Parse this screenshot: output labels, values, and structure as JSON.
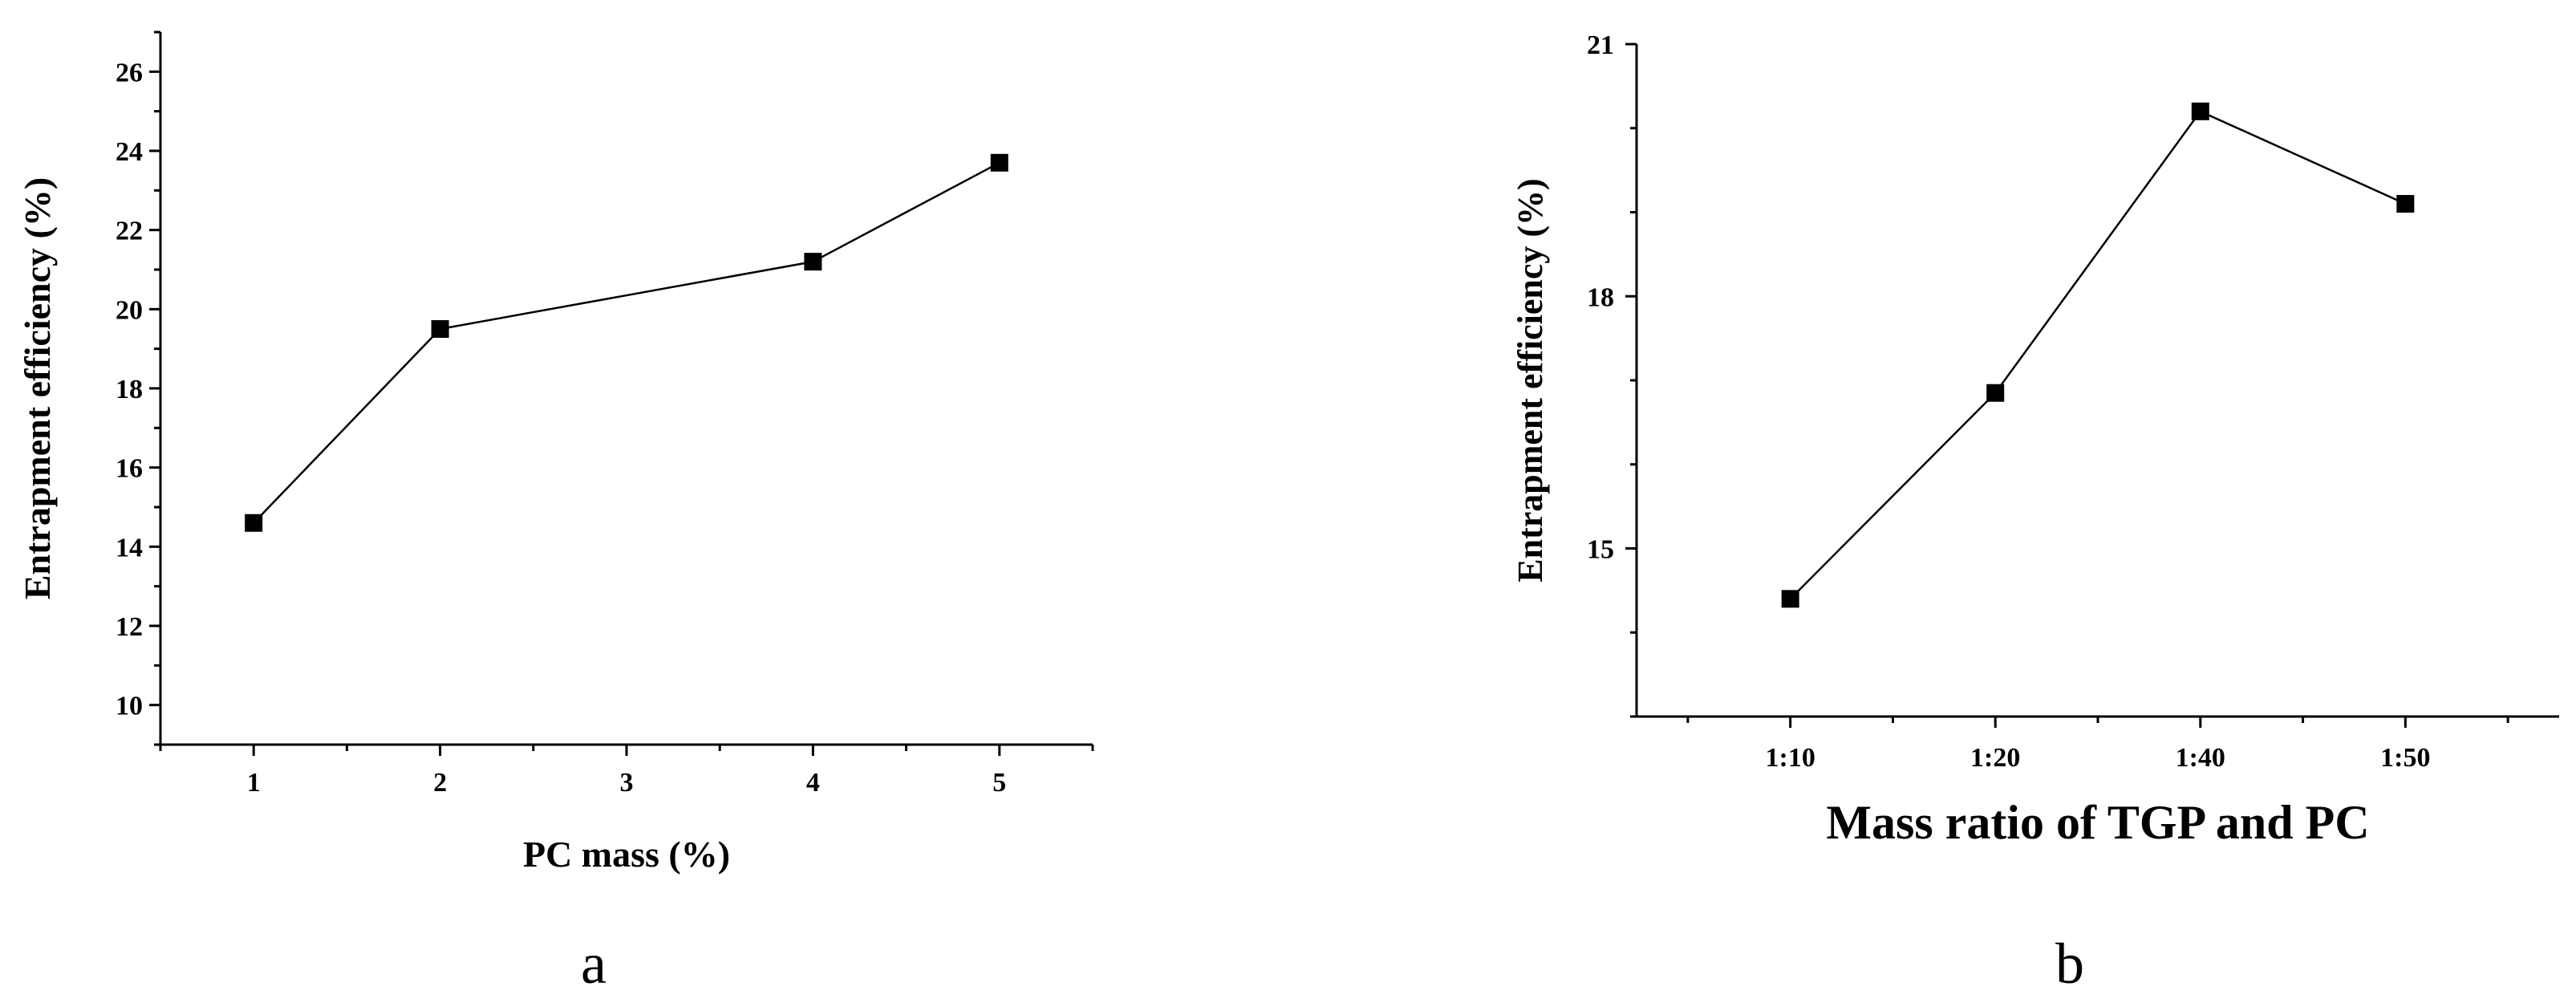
{
  "chart_data": [
    {
      "type": "line",
      "panel_label": "a",
      "xlabel": "PC mass (%)",
      "ylabel": "Entrapment efficiency (%)",
      "x_ticks": [
        "1",
        "2",
        "3",
        "4",
        "5"
      ],
      "x_tick_values": [
        1,
        2,
        3,
        4,
        5
      ],
      "xlim": [
        0.5,
        5.5
      ],
      "y_ticks": [
        "10",
        "12",
        "14",
        "16",
        "18",
        "20",
        "22",
        "24",
        "26"
      ],
      "y_tick_values": [
        10,
        12,
        14,
        16,
        18,
        20,
        22,
        24,
        26
      ],
      "ylim": [
        9,
        27
      ],
      "grid": false,
      "marker": "square",
      "color": "#000000",
      "series": [
        {
          "x": [
            1,
            2,
            4,
            5
          ],
          "values": [
            14.6,
            19.5,
            21.2,
            23.7
          ]
        }
      ]
    },
    {
      "type": "line",
      "panel_label": "b",
      "xlabel": "Mass ratio of TGP and PC",
      "ylabel": "Entrapment efficiency (%)",
      "categories": [
        "1:10",
        "1:20",
        "1:40",
        "1:50"
      ],
      "y_ticks": [
        "15",
        "18",
        "21"
      ],
      "y_tick_values": [
        15,
        18,
        21
      ],
      "ylim": [
        13,
        21
      ],
      "grid": false,
      "marker": "square",
      "color": "#000000",
      "series": [
        {
          "values": [
            14.4,
            16.85,
            20.2,
            19.1
          ]
        }
      ]
    }
  ]
}
